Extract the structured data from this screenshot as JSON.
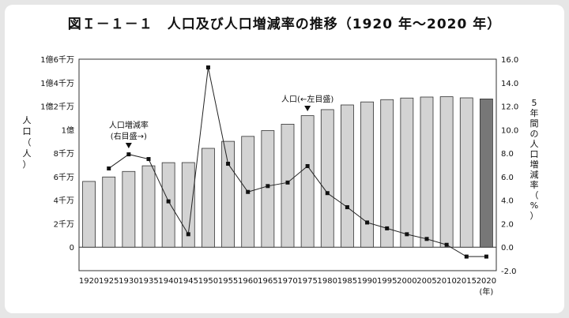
{
  "title": "図Ｉ－１－１　人口及び人口増減率の推移（1920 年～2020 年）",
  "chart_data": {
    "type": "bar+line",
    "categories": [
      "1920",
      "1925",
      "1930",
      "1935",
      "1940",
      "1945",
      "1950",
      "1955",
      "1960",
      "1965",
      "1970",
      "1975",
      "1980",
      "1985",
      "1990",
      "1995",
      "2000",
      "2005",
      "2010",
      "2015",
      "2020"
    ],
    "x_unit": "(年)",
    "series": [
      {
        "name": "人口",
        "axis": "left",
        "values": [
          5596,
          5974,
          6445,
          6925,
          7193,
          7200,
          8411,
          9008,
          9430,
          9921,
          10467,
          11194,
          11706,
          12105,
          12361,
          12557,
          12693,
          12777,
          12806,
          12709,
          12615
        ],
        "highlight_last": true
      },
      {
        "name": "5年間の人口増減率（%）",
        "axis": "right",
        "values": [
          null,
          6.7,
          7.9,
          7.5,
          3.9,
          1.1,
          15.3,
          7.1,
          4.7,
          5.2,
          5.5,
          6.9,
          4.6,
          3.4,
          2.1,
          1.6,
          1.1,
          0.7,
          0.2,
          -0.8,
          -0.8
        ]
      }
    ],
    "left_axis": {
      "label": "人口（人）",
      "ticks": [
        "0",
        "2千万",
        "4千万",
        "6千万",
        "8千万",
        "1億",
        "1億2千万",
        "1億4千万",
        "1億6千万"
      ],
      "range": [
        -2000,
        16000
      ]
    },
    "right_axis": {
      "label": "5年間の人口増減率（%）",
      "ticks": [
        "-2.0",
        "0.0",
        "2.0",
        "4.0",
        "6.0",
        "8.0",
        "10.0",
        "12.0",
        "14.0",
        "16.0"
      ],
      "range": [
        -2,
        16
      ]
    },
    "annotations": [
      {
        "lines": [
          "人口増減率",
          "(右目盛→)"
        ],
        "arrow": "down",
        "target_category": "1930"
      },
      {
        "lines": [
          "人口(←左目盛)"
        ],
        "arrow": "down",
        "target_category": "1975"
      }
    ],
    "colors": {
      "bar": "#d3d3d3",
      "bar_last": "#777777",
      "line": "#222222",
      "marker": "#111111"
    }
  }
}
